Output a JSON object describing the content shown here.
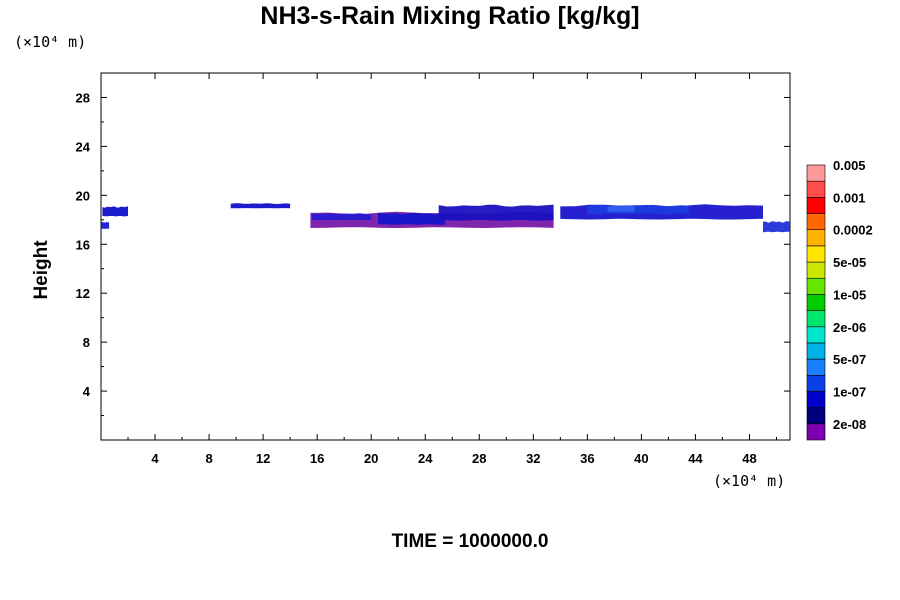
{
  "chart_data": {
    "type": "heatmap",
    "title": "NH3-s-Rain Mixing Ratio [kg/kg]",
    "ylabel": "Height",
    "x_unit": "(×10⁴ m)",
    "y_unit": "(×10⁴ m)",
    "footer": "TIME = 1000000.0",
    "xlim": [
      0,
      51
    ],
    "ylim": [
      0,
      30
    ],
    "x_ticks": [
      4,
      8,
      12,
      16,
      20,
      24,
      28,
      32,
      36,
      40,
      44,
      48
    ],
    "y_ticks": [
      4,
      8,
      12,
      16,
      20,
      24,
      28
    ],
    "colorbar": {
      "colors": [
        "#7f00b2",
        "#00007f",
        "#0000cc",
        "#0b3fe6",
        "#1a7fff",
        "#00b2e6",
        "#00e6cc",
        "#00e66b",
        "#00cc00",
        "#66e600",
        "#cce600",
        "#ffe600",
        "#ffb200",
        "#ff6600",
        "#ff0000",
        "#ff4d4d",
        "#ff9999"
      ],
      "labels": [
        "2e-08",
        "1e-07",
        "5e-07",
        "2e-06",
        "1e-05",
        "5e-05",
        "0.0002",
        "0.001",
        "0.005"
      ]
    },
    "features": [
      {
        "x0": 0.1,
        "x1": 2.0,
        "ytop": 19.2,
        "ybot": 18.2,
        "color": "#1010cc"
      },
      {
        "x0": 0.0,
        "x1": 0.6,
        "ytop": 17.9,
        "ybot": 17.2,
        "color": "#1a1ad0"
      },
      {
        "x0": 9.6,
        "x1": 14.0,
        "ytop": 19.4,
        "ybot": 18.9,
        "color": "#1010cc"
      },
      {
        "x0": 15.5,
        "x1": 33.5,
        "ytop": 18.8,
        "ybot": 17.2,
        "color": "#7a1aa8"
      },
      {
        "x0": 15.6,
        "x1": 20.0,
        "ytop": 18.6,
        "ybot": 17.9,
        "color": "#2a1ad0"
      },
      {
        "x0": 20.5,
        "x1": 25.5,
        "ytop": 18.7,
        "ybot": 17.5,
        "color": "#1414c8"
      },
      {
        "x0": 25.0,
        "x1": 33.5,
        "ytop": 19.4,
        "ybot": 17.8,
        "color": "#1a10c0"
      },
      {
        "x0": 34.0,
        "x1": 49.0,
        "ytop": 19.4,
        "ybot": 17.9,
        "color": "#1a14cc"
      },
      {
        "x0": 36.0,
        "x1": 43.5,
        "ytop": 19.3,
        "ybot": 18.4,
        "color": "#1c3ce0"
      },
      {
        "x0": 49.0,
        "x1": 51.0,
        "ytop": 18.0,
        "ybot": 16.9,
        "color": "#2030d8"
      },
      {
        "x0": 37.5,
        "x1": 39.5,
        "ytop": 19.2,
        "ybot": 18.6,
        "color": "#3060f0"
      }
    ]
  }
}
